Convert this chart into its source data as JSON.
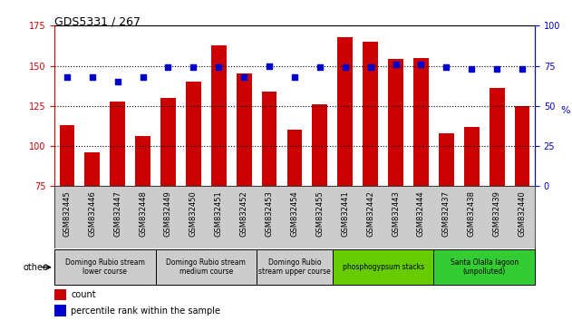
{
  "title": "GDS5331 / 267",
  "samples": [
    "GSM832445",
    "GSM832446",
    "GSM832447",
    "GSM832448",
    "GSM832449",
    "GSM832450",
    "GSM832451",
    "GSM832452",
    "GSM832453",
    "GSM832454",
    "GSM832455",
    "GSM832441",
    "GSM832442",
    "GSM832443",
    "GSM832444",
    "GSM832437",
    "GSM832438",
    "GSM832439",
    "GSM832440"
  ],
  "counts": [
    113,
    96,
    128,
    106,
    130,
    140,
    163,
    145,
    134,
    110,
    126,
    168,
    165,
    154,
    155,
    108,
    112,
    136,
    125
  ],
  "percentiles": [
    68,
    68,
    65,
    68,
    74,
    74,
    74,
    68,
    75,
    68,
    74,
    74,
    74,
    76,
    76,
    74,
    73,
    73,
    73
  ],
  "ylim_left": [
    75,
    175
  ],
  "ylim_right": [
    0,
    100
  ],
  "yticks_left": [
    75,
    100,
    125,
    150,
    175
  ],
  "yticks_right": [
    0,
    25,
    50,
    75,
    100
  ],
  "bar_color": "#cc0000",
  "dot_color": "#0000cc",
  "groups": [
    {
      "label": "Domingo Rubio stream\nlower course",
      "start": 0,
      "end": 3,
      "color": "#cccccc"
    },
    {
      "label": "Domingo Rubio stream\nmedium course",
      "start": 4,
      "end": 7,
      "color": "#cccccc"
    },
    {
      "label": "Domingo Rubio\nstream upper course",
      "start": 8,
      "end": 10,
      "color": "#cccccc"
    },
    {
      "label": "phosphogypsum stacks",
      "start": 11,
      "end": 14,
      "color": "#66cc00"
    },
    {
      "label": "Santa Olalla lagoon\n(unpolluted)",
      "start": 15,
      "end": 18,
      "color": "#33cc33"
    }
  ],
  "tick_bg_color": "#cccccc",
  "grid_color": "black",
  "left_axis_color": "#cc0000",
  "right_axis_color": "#0000cc",
  "legend_count_color": "#cc0000",
  "legend_pct_color": "#0000cc",
  "other_label": "other",
  "pct_label": "%"
}
